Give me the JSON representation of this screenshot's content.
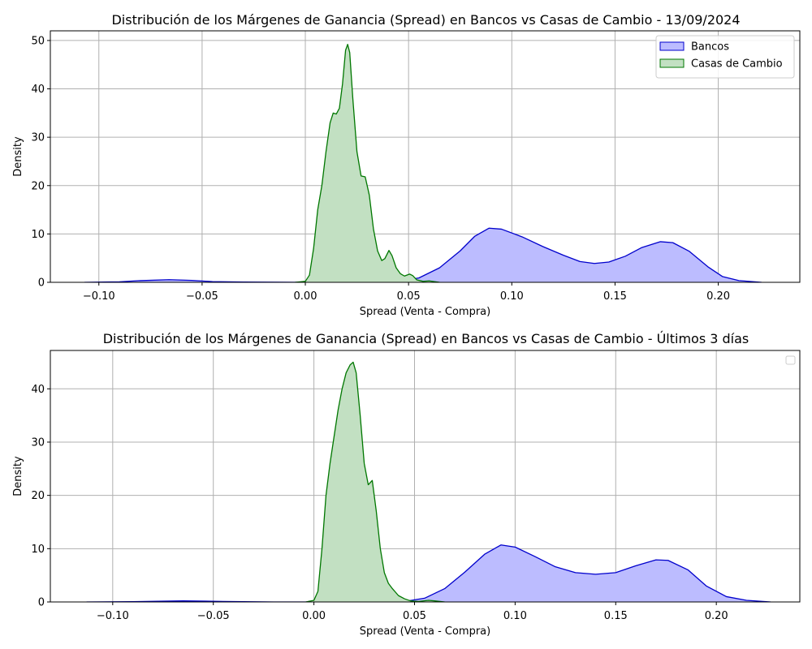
{
  "chart_data": [
    {
      "type": "area",
      "title": "Distribución de los Márgenes de Ganancia (Spread) en Bancos vs Casas de Cambio - 13/09/2024",
      "xlabel": "Spread (Venta - Compra)",
      "ylabel": "Density",
      "xlim": [
        -0.1235,
        0.2395
      ],
      "ylim": [
        0,
        52
      ],
      "xticks": [
        -0.1,
        -0.05,
        0.0,
        0.05,
        0.1,
        0.15,
        0.2
      ],
      "xtick_labels": [
        "−0.10",
        "−0.05",
        "0.00",
        "0.05",
        "0.10",
        "0.15",
        "0.20"
      ],
      "yticks": [
        0,
        10,
        20,
        30,
        40,
        50
      ],
      "ytick_labels": [
        "0",
        "10",
        "20",
        "30",
        "40",
        "50"
      ],
      "grid": true,
      "legend": "top-right",
      "series": [
        {
          "name": "Bancos",
          "color": "#0000cc",
          "fill": "#bcbcff",
          "points": [
            [
              -0.107,
              0.0
            ],
            [
              -0.09,
              0.1
            ],
            [
              -0.08,
              0.35
            ],
            [
              -0.066,
              0.55
            ],
            [
              -0.055,
              0.4
            ],
            [
              -0.045,
              0.15
            ],
            [
              -0.03,
              0.05
            ],
            [
              0.0,
              0.0
            ],
            [
              0.03,
              0.0
            ],
            [
              0.045,
              0.2
            ],
            [
              0.055,
              0.9
            ],
            [
              0.065,
              3.0
            ],
            [
              0.075,
              6.5
            ],
            [
              0.082,
              9.5
            ],
            [
              0.089,
              11.2
            ],
            [
              0.095,
              11.0
            ],
            [
              0.105,
              9.4
            ],
            [
              0.115,
              7.4
            ],
            [
              0.125,
              5.6
            ],
            [
              0.133,
              4.3
            ],
            [
              0.14,
              3.9
            ],
            [
              0.147,
              4.2
            ],
            [
              0.155,
              5.4
            ],
            [
              0.163,
              7.2
            ],
            [
              0.172,
              8.4
            ],
            [
              0.178,
              8.2
            ],
            [
              0.186,
              6.4
            ],
            [
              0.195,
              3.2
            ],
            [
              0.202,
              1.2
            ],
            [
              0.21,
              0.35
            ],
            [
              0.221,
              0.0
            ]
          ]
        },
        {
          "name": "Casas de Cambio",
          "color": "#007700",
          "fill": "#c2e0c2",
          "points": [
            [
              -0.005,
              0.0
            ],
            [
              0.0,
              0.2
            ],
            [
              0.002,
              1.5
            ],
            [
              0.004,
              7.0
            ],
            [
              0.006,
              15.0
            ],
            [
              0.008,
              20.0
            ],
            [
              0.01,
              27.0
            ],
            [
              0.012,
              33.0
            ],
            [
              0.0135,
              35.0
            ],
            [
              0.015,
              34.8
            ],
            [
              0.0165,
              36.0
            ],
            [
              0.018,
              41.0
            ],
            [
              0.0195,
              48.0
            ],
            [
              0.0205,
              49.2
            ],
            [
              0.0215,
              47.5
            ],
            [
              0.023,
              38.0
            ],
            [
              0.025,
              27.0
            ],
            [
              0.027,
              22.0
            ],
            [
              0.029,
              21.8
            ],
            [
              0.031,
              18.0
            ],
            [
              0.033,
              11.0
            ],
            [
              0.035,
              6.5
            ],
            [
              0.037,
              4.5
            ],
            [
              0.0385,
              4.9
            ],
            [
              0.0405,
              6.6
            ],
            [
              0.042,
              5.5
            ],
            [
              0.044,
              3.0
            ],
            [
              0.046,
              1.8
            ],
            [
              0.048,
              1.3
            ],
            [
              0.0505,
              1.7
            ],
            [
              0.052,
              1.4
            ],
            [
              0.054,
              0.5
            ],
            [
              0.057,
              0.2
            ],
            [
              0.06,
              0.3
            ],
            [
              0.065,
              0.0
            ]
          ]
        }
      ]
    },
    {
      "type": "area",
      "title": "Distribución de los Márgenes de Ganancia (Spread) en Bancos vs Casas de Cambio - Últimos 3 días",
      "xlabel": "Spread (Venta - Compra)",
      "ylabel": "Density",
      "xlim": [
        -0.131,
        0.2415
      ],
      "ylim": [
        0,
        47.2
      ],
      "xticks": [
        -0.1,
        -0.05,
        0.0,
        0.05,
        0.1,
        0.15,
        0.2
      ],
      "xtick_labels": [
        "−0.10",
        "−0.05",
        "0.00",
        "0.05",
        "0.10",
        "0.15",
        "0.20"
      ],
      "yticks": [
        0,
        10,
        20,
        30,
        40
      ],
      "ytick_labels": [
        "0",
        "10",
        "20",
        "30",
        "40"
      ],
      "grid": true,
      "legend": "top-right (empty)",
      "series": [
        {
          "color": "#0000cc",
          "fill": "#bcbcff",
          "points": [
            [
              -0.113,
              0.0
            ],
            [
              -0.09,
              0.05
            ],
            [
              -0.065,
              0.2
            ],
            [
              -0.045,
              0.1
            ],
            [
              -0.02,
              0.0
            ],
            [
              0.0,
              0.0
            ],
            [
              0.03,
              0.0
            ],
            [
              0.045,
              0.1
            ],
            [
              0.055,
              0.7
            ],
            [
              0.065,
              2.5
            ],
            [
              0.075,
              5.6
            ],
            [
              0.085,
              9.0
            ],
            [
              0.093,
              10.7
            ],
            [
              0.1,
              10.3
            ],
            [
              0.11,
              8.5
            ],
            [
              0.12,
              6.6
            ],
            [
              0.13,
              5.5
            ],
            [
              0.14,
              5.2
            ],
            [
              0.15,
              5.5
            ],
            [
              0.16,
              6.8
            ],
            [
              0.17,
              7.9
            ],
            [
              0.176,
              7.8
            ],
            [
              0.186,
              6.0
            ],
            [
              0.195,
              3.0
            ],
            [
              0.205,
              1.0
            ],
            [
              0.215,
              0.3
            ],
            [
              0.227,
              0.0
            ]
          ]
        },
        {
          "color": "#007700",
          "fill": "#c2e0c2",
          "points": [
            [
              -0.004,
              0.0
            ],
            [
              0.0,
              0.3
            ],
            [
              0.002,
              2.0
            ],
            [
              0.004,
              10.0
            ],
            [
              0.006,
              20.0
            ],
            [
              0.008,
              26.0
            ],
            [
              0.01,
              31.0
            ],
            [
              0.012,
              36.0
            ],
            [
              0.014,
              40.0
            ],
            [
              0.016,
              43.0
            ],
            [
              0.018,
              44.5
            ],
            [
              0.0195,
              45.0
            ],
            [
              0.021,
              43.0
            ],
            [
              0.023,
              35.0
            ],
            [
              0.025,
              26.0
            ],
            [
              0.027,
              22.0
            ],
            [
              0.029,
              22.8
            ],
            [
              0.031,
              17.0
            ],
            [
              0.033,
              10.0
            ],
            [
              0.035,
              5.5
            ],
            [
              0.037,
              3.5
            ],
            [
              0.039,
              2.5
            ],
            [
              0.042,
              1.2
            ],
            [
              0.045,
              0.6
            ],
            [
              0.048,
              0.2
            ],
            [
              0.052,
              0.1
            ],
            [
              0.057,
              0.3
            ],
            [
              0.06,
              0.2
            ],
            [
              0.065,
              0.0
            ]
          ]
        }
      ]
    }
  ]
}
